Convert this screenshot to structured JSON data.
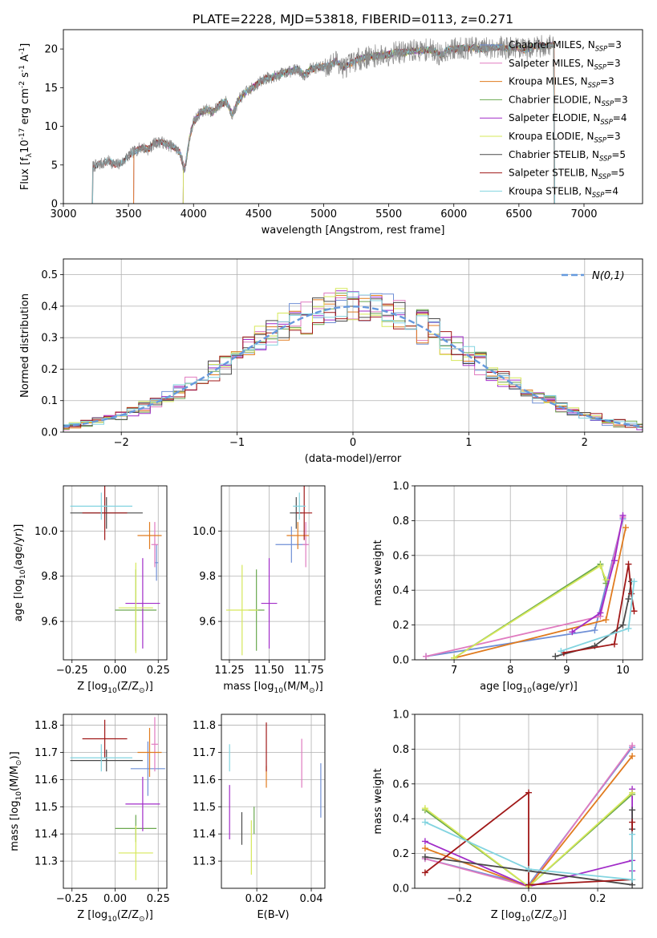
{
  "colors": {
    "chabrier_miles": "#6f8fd6",
    "salpeter_miles": "#e07bc0",
    "kroupa_miles": "#e07b1f",
    "chabrier_elodie": "#6aa84f",
    "salpeter_elodie": "#a12cc8",
    "kroupa_elodie": "#d6e85a",
    "chabrier_stelib": "#4a4a4a",
    "salpeter_stelib": "#a01818",
    "kroupa_stelib": "#83d4e0",
    "normal": "#6699dd"
  },
  "chart_data": [
    {
      "id": "spectrum",
      "type": "line",
      "title": "PLATE=2228, MJD=53818, FIBERID=0113, z=0.271",
      "xlabel": "wavelength [Angstrom, rest frame]",
      "ylabel": "Flux [f$_\\lambda$10$^{-17}$ erg cm$^{-2}$ s$^{-1}$ A$^{-1}$]",
      "xlim": [
        3000,
        7450
      ],
      "ylim": [
        0,
        22.5
      ],
      "xticks": [
        3000,
        3500,
        4000,
        4500,
        5000,
        5500,
        6000,
        6500,
        7000
      ],
      "yticks": [
        0,
        5,
        10,
        15,
        20
      ],
      "grid": false,
      "legend_position": "top-right",
      "spectrum_points": [
        [
          3220,
          0
        ],
        [
          3225,
          4.8
        ],
        [
          3300,
          5.2
        ],
        [
          3350,
          5.5
        ],
        [
          3400,
          5.0
        ],
        [
          3450,
          5.3
        ],
        [
          3500,
          6.2
        ],
        [
          3550,
          6.8
        ],
        [
          3600,
          7.3
        ],
        [
          3650,
          7.0
        ],
        [
          3700,
          7.8
        ],
        [
          3750,
          8.0
        ],
        [
          3800,
          7.6
        ],
        [
          3850,
          7.3
        ],
        [
          3900,
          6.5
        ],
        [
          3930,
          4.2
        ],
        [
          3970,
          8.5
        ],
        [
          4000,
          10.5
        ],
        [
          4050,
          11.8
        ],
        [
          4100,
          12.2
        ],
        [
          4150,
          11.8
        ],
        [
          4200,
          12.8
        ],
        [
          4250,
          13.2
        ],
        [
          4300,
          11.5
        ],
        [
          4350,
          13.5
        ],
        [
          4400,
          14.4
        ],
        [
          4450,
          14.9
        ],
        [
          4500,
          15.6
        ],
        [
          4550,
          16.2
        ],
        [
          4600,
          16.3
        ],
        [
          4650,
          16.6
        ],
        [
          4700,
          17.0
        ],
        [
          4750,
          17.1
        ],
        [
          4800,
          17.4
        ],
        [
          4850,
          16.6
        ],
        [
          4900,
          17.4
        ],
        [
          4950,
          17.6
        ],
        [
          5000,
          17.7
        ],
        [
          5050,
          17.9
        ],
        [
          5100,
          18.5
        ],
        [
          5150,
          17.6
        ],
        [
          5200,
          18.0
        ],
        [
          5250,
          18.6
        ],
        [
          5300,
          18.8
        ],
        [
          5350,
          19.0
        ],
        [
          5400,
          19.1
        ],
        [
          5450,
          19.2
        ],
        [
          5500,
          19.3
        ],
        [
          5550,
          19.6
        ],
        [
          5600,
          19.5
        ],
        [
          5650,
          19.7
        ],
        [
          5700,
          19.8
        ],
        [
          5750,
          19.8
        ],
        [
          5800,
          19.9
        ],
        [
          5850,
          19.8
        ],
        [
          5900,
          19.1
        ],
        [
          5950,
          19.9
        ],
        [
          6000,
          20.0
        ],
        [
          6050,
          20.1
        ],
        [
          6100,
          20.1
        ],
        [
          6150,
          20.2
        ],
        [
          6200,
          20.0
        ],
        [
          6250,
          20.1
        ],
        [
          6300,
          20.2
        ],
        [
          6350,
          20.3
        ],
        [
          6400,
          20.1
        ],
        [
          6450,
          20.2
        ],
        [
          6500,
          20.2
        ],
        [
          6550,
          19.8
        ],
        [
          6600,
          20.3
        ],
        [
          6650,
          20.4
        ],
        [
          6700,
          20.4
        ],
        [
          6750,
          20.5
        ]
      ],
      "series": [
        {
          "name": "Chabrier MILES, N$_{SSP}$=3",
          "color_key": "chabrier_miles",
          "start": 3540
        },
        {
          "name": "Salpeter MILES, N$_{SSP}$=3",
          "color_key": "salpeter_miles",
          "start": 3540
        },
        {
          "name": "Kroupa MILES, N$_{SSP}$=3",
          "color_key": "kroupa_miles",
          "start": 3540
        },
        {
          "name": "Chabrier ELODIE, N$_{SSP}$=3",
          "color_key": "chabrier_elodie",
          "start": 3920
        },
        {
          "name": "Salpeter ELODIE, N$_{SSP}$=4",
          "color_key": "salpeter_elodie",
          "start": 3920
        },
        {
          "name": "Kroupa ELODIE, N$_{SSP}$=3",
          "color_key": "kroupa_elodie",
          "start": 3920
        },
        {
          "name": "Chabrier STELIB, N$_{SSP}$=5",
          "color_key": "chabrier_stelib",
          "start": 3225
        },
        {
          "name": "Salpeter STELIB, N$_{SSP}$=5",
          "color_key": "salpeter_stelib",
          "start": 3225
        },
        {
          "name": "Kroupa STELIB, N$_{SSP}$=4",
          "color_key": "kroupa_stelib",
          "start": 3225
        }
      ]
    },
    {
      "id": "residuals",
      "type": "line",
      "xlabel": "(data-model)/error",
      "ylabel": "Normed distribution",
      "xlim": [
        -2.5,
        2.5
      ],
      "ylim": [
        0,
        0.55
      ],
      "xticks": [
        -2,
        -1,
        0,
        1,
        2
      ],
      "yticks": [
        0.0,
        0.1,
        0.2,
        0.3,
        0.4,
        0.5
      ],
      "grid": true,
      "legend_position": "top-right",
      "normal_label": "$\\mathcal{N}(0,1)$",
      "bin_width": 0.1
    },
    {
      "id": "age_vs_z",
      "type": "scatter",
      "xlabel": "Z [log$_{10}$(Z/Z$_\\odot$)]",
      "ylabel": "age  [log$_{10}$(age/yr)]",
      "xlim": [
        -0.3,
        0.3
      ],
      "ylim": [
        9.43,
        10.2
      ],
      "xticks": [
        -0.25,
        0.0,
        0.25
      ],
      "yticks": [
        9.6,
        9.8,
        10.0
      ],
      "grid": true,
      "points": [
        {
          "color_key": "chabrier_miles",
          "x": 0.24,
          "xerr": 0.01,
          "y": 9.86,
          "yerr": 0.08
        },
        {
          "color_key": "salpeter_miles",
          "x": 0.23,
          "xerr": 0.02,
          "y": 9.94,
          "yerr": 0.1
        },
        {
          "color_key": "kroupa_miles",
          "x": 0.2,
          "xerr": 0.07,
          "y": 9.98,
          "yerr": 0.06
        },
        {
          "color_key": "chabrier_elodie",
          "x": 0.12,
          "xerr": 0.12,
          "y": 9.65,
          "yerr": 0.18
        },
        {
          "color_key": "salpeter_elodie",
          "x": 0.16,
          "xerr": 0.1,
          "y": 9.68,
          "yerr": 0.2
        },
        {
          "color_key": "kroupa_elodie",
          "x": 0.12,
          "xerr": 0.1,
          "y": 9.66,
          "yerr": 0.2
        },
        {
          "color_key": "chabrier_stelib",
          "x": -0.05,
          "xerr": 0.21,
          "y": 10.08,
          "yerr": 0.07
        },
        {
          "color_key": "salpeter_stelib",
          "x": -0.06,
          "xerr": 0.13,
          "y": 10.08,
          "yerr": 0.12
        },
        {
          "color_key": "kroupa_stelib",
          "x": -0.08,
          "xerr": 0.18,
          "y": 10.11,
          "yerr": 0.06
        }
      ]
    },
    {
      "id": "age_vs_mass",
      "type": "scatter",
      "xlabel": "mass [log$_{10}$(M/M$_\\odot$)]",
      "ylabel": "",
      "xlim": [
        11.2,
        11.85
      ],
      "ylim": [
        9.43,
        10.2
      ],
      "xticks": [
        11.25,
        11.5,
        11.75
      ],
      "yticks": [
        9.6,
        9.8,
        10.0
      ],
      "grid": true,
      "points": [
        {
          "color_key": "chabrier_miles",
          "x": 11.64,
          "xerr": 0.1,
          "y": 9.94,
          "yerr": 0.08
        },
        {
          "color_key": "salpeter_miles",
          "x": 11.73,
          "xerr": 0.02,
          "y": 9.94,
          "yerr": 0.1
        },
        {
          "color_key": "kroupa_miles",
          "x": 11.68,
          "xerr": 0.07,
          "y": 9.98,
          "yerr": 0.06
        },
        {
          "color_key": "chabrier_elodie",
          "x": 11.42,
          "xerr": 0.05,
          "y": 9.65,
          "yerr": 0.18
        },
        {
          "color_key": "salpeter_elodie",
          "x": 11.5,
          "xerr": 0.05,
          "y": 9.68,
          "yerr": 0.2
        },
        {
          "color_key": "kroupa_elodie",
          "x": 11.33,
          "xerr": 0.1,
          "y": 9.65,
          "yerr": 0.2
        },
        {
          "color_key": "chabrier_stelib",
          "x": 11.67,
          "xerr": 0.04,
          "y": 10.08,
          "yerr": 0.07
        },
        {
          "color_key": "salpeter_stelib",
          "x": 11.72,
          "xerr": 0.05,
          "y": 10.08,
          "yerr": 0.12
        },
        {
          "color_key": "kroupa_stelib",
          "x": 11.69,
          "xerr": 0.04,
          "y": 10.11,
          "yerr": 0.06
        }
      ]
    },
    {
      "id": "mass_weight_vs_age",
      "type": "line",
      "xlabel": "age  [log$_{10}$(age/yr)]",
      "ylabel": "mass weight",
      "xlim": [
        6.3,
        10.35
      ],
      "ylim": [
        0,
        1.0
      ],
      "xticks": [
        7,
        8,
        9,
        10
      ],
      "yticks": [
        0.0,
        0.2,
        0.4,
        0.6,
        0.8,
        1.0
      ],
      "grid": true,
      "series": [
        {
          "color_key": "chabrier_miles",
          "x": [
            6.5,
            9.5,
            10.0
          ],
          "y": [
            0.02,
            0.17,
            0.81
          ]
        },
        {
          "color_key": "salpeter_miles",
          "x": [
            6.5,
            9.6,
            10.0
          ],
          "y": [
            0.02,
            0.25,
            0.82
          ]
        },
        {
          "color_key": "kroupa_miles",
          "x": [
            7.0,
            9.7,
            10.05
          ],
          "y": [
            0.01,
            0.23,
            0.76
          ]
        },
        {
          "color_key": "chabrier_elodie",
          "x": [
            7.0,
            9.6,
            9.7
          ],
          "y": [
            0.01,
            0.55,
            0.44
          ]
        },
        {
          "color_key": "salpeter_elodie",
          "x": [
            9.1,
            9.6,
            9.85,
            10.0
          ],
          "y": [
            0.16,
            0.27,
            0.57,
            0.83
          ]
        },
        {
          "color_key": "kroupa_elodie",
          "x": [
            7.0,
            9.6,
            9.7
          ],
          "y": [
            0.01,
            0.54,
            0.46
          ]
        },
        {
          "color_key": "chabrier_stelib",
          "x": [
            8.8,
            9.5,
            10.0,
            10.1,
            10.15
          ],
          "y": [
            0.02,
            0.08,
            0.2,
            0.35,
            0.45
          ]
        },
        {
          "color_key": "salpeter_stelib",
          "x": [
            8.95,
            9.85,
            10.1,
            10.15,
            10.2
          ],
          "y": [
            0.04,
            0.09,
            0.55,
            0.38,
            0.28
          ]
        },
        {
          "color_key": "kroupa_stelib",
          "x": [
            8.9,
            10.1,
            10.2
          ],
          "y": [
            0.05,
            0.18,
            0.45
          ]
        }
      ]
    },
    {
      "id": "mass_vs_z",
      "type": "scatter",
      "xlabel": "Z [log$_{10}$(Z/Z$_\\odot$)]",
      "ylabel": "mass [log$_{10}$(M/M$_\\odot$)]",
      "xlim": [
        -0.3,
        0.3
      ],
      "ylim": [
        11.2,
        11.84
      ],
      "xticks": [
        -0.25,
        0.0,
        0.25
      ],
      "yticks": [
        11.3,
        11.4,
        11.5,
        11.6,
        11.7,
        11.8
      ],
      "grid": true,
      "points": [
        {
          "color_key": "chabrier_miles",
          "x": 0.19,
          "xerr": 0.1,
          "y": 11.64,
          "yerr": 0.1
        },
        {
          "color_key": "salpeter_miles",
          "x": 0.23,
          "xerr": 0.02,
          "y": 11.73,
          "yerr": 0.1
        },
        {
          "color_key": "kroupa_miles",
          "x": 0.2,
          "xerr": 0.07,
          "y": 11.7,
          "yerr": 0.09
        },
        {
          "color_key": "chabrier_elodie",
          "x": 0.12,
          "xerr": 0.12,
          "y": 11.42,
          "yerr": 0.05
        },
        {
          "color_key": "salpeter_elodie",
          "x": 0.16,
          "xerr": 0.1,
          "y": 11.51,
          "yerr": 0.1
        },
        {
          "color_key": "kroupa_elodie",
          "x": 0.12,
          "xerr": 0.1,
          "y": 11.33,
          "yerr": 0.1
        },
        {
          "color_key": "chabrier_stelib",
          "x": -0.05,
          "xerr": 0.21,
          "y": 11.67,
          "yerr": 0.04
        },
        {
          "color_key": "salpeter_stelib",
          "x": -0.06,
          "xerr": 0.13,
          "y": 11.75,
          "yerr": 0.07
        },
        {
          "color_key": "kroupa_stelib",
          "x": -0.08,
          "xerr": 0.18,
          "y": 11.68,
          "yerr": 0.05
        }
      ]
    },
    {
      "id": "mass_vs_ebv",
      "type": "scatter",
      "xlabel": "E(B-V)",
      "ylabel": "",
      "xlim": [
        0.007,
        0.045
      ],
      "ylim": [
        11.2,
        11.84
      ],
      "xticks": [
        0.02,
        0.04
      ],
      "yticks": [
        11.3,
        11.4,
        11.5,
        11.6,
        11.7,
        11.8
      ],
      "grid": true,
      "points": [
        {
          "color_key": "chabrier_miles",
          "x": 0.0435,
          "xerr": 0,
          "y": 11.56,
          "yerr": 0.1
        },
        {
          "color_key": "salpeter_miles",
          "x": 0.0365,
          "xerr": 0,
          "y": 11.66,
          "yerr": 0.09
        },
        {
          "color_key": "kroupa_miles",
          "x": 0.0235,
          "xerr": 0,
          "y": 11.61,
          "yerr": 0.04
        },
        {
          "color_key": "chabrier_elodie",
          "x": 0.019,
          "xerr": 0,
          "y": 11.45,
          "yerr": 0.05
        },
        {
          "color_key": "salpeter_elodie",
          "x": 0.01,
          "xerr": 0,
          "y": 11.48,
          "yerr": 0.1
        },
        {
          "color_key": "kroupa_elodie",
          "x": 0.018,
          "xerr": 0,
          "y": 11.35,
          "yerr": 0.1
        },
        {
          "color_key": "chabrier_stelib",
          "x": 0.0145,
          "xerr": 0,
          "y": 11.42,
          "yerr": 0.06
        },
        {
          "color_key": "salpeter_stelib",
          "x": 0.0235,
          "xerr": 0,
          "y": 11.72,
          "yerr": 0.09
        },
        {
          "color_key": "kroupa_stelib",
          "x": 0.01,
          "xerr": 0,
          "y": 11.68,
          "yerr": 0.05
        }
      ]
    },
    {
      "id": "mass_weight_vs_z",
      "type": "line",
      "xlabel": "Z [log$_{10}$(Z/Z$_\\odot$)]",
      "ylabel": "mass weight",
      "xlim": [
        -0.33,
        0.33
      ],
      "ylim": [
        0,
        1.0
      ],
      "xticks": [
        -0.2,
        0.0,
        0.2
      ],
      "yticks": [
        0.0,
        0.2,
        0.4,
        0.6,
        0.8,
        1.0
      ],
      "grid": true,
      "series": [
        {
          "color_key": "chabrier_miles",
          "x": [
            -0.3,
            0.0,
            0.3
          ],
          "y": [
            0.17,
            0.02,
            0.81
          ]
        },
        {
          "color_key": "salpeter_miles",
          "x": [
            -0.3,
            0.0,
            0.3
          ],
          "y": [
            0.17,
            0.01,
            0.82
          ]
        },
        {
          "color_key": "kroupa_miles",
          "x": [
            -0.3,
            0.0,
            0.3
          ],
          "y": [
            0.23,
            0.01,
            0.76
          ]
        },
        {
          "color_key": "chabrier_elodie",
          "x": [
            -0.3,
            0.0,
            0.3
          ],
          "y": [
            0.45,
            0.01,
            0.54
          ]
        },
        {
          "color_key": "salpeter_elodie",
          "x": [
            -0.3,
            0.0,
            0.3,
            0.3,
            0.3
          ],
          "y": [
            0.27,
            0.01,
            0.16,
            0.57,
            0.1
          ]
        },
        {
          "color_key": "kroupa_elodie",
          "x": [
            -0.3,
            0.0,
            0.3
          ],
          "y": [
            0.46,
            0.01,
            0.55
          ]
        },
        {
          "color_key": "chabrier_stelib",
          "x": [
            -0.3,
            0.0,
            0.3,
            0.3,
            0.3
          ],
          "y": [
            0.18,
            0.1,
            0.02,
            0.34,
            0.45
          ]
        },
        {
          "color_key": "salpeter_stelib",
          "x": [
            -0.3,
            0.0,
            0.0,
            0.3,
            0.3
          ],
          "y": [
            0.09,
            0.55,
            0.02,
            0.05,
            0.38
          ]
        },
        {
          "color_key": "kroupa_stelib",
          "x": [
            -0.3,
            0.0,
            0.3,
            0.3
          ],
          "y": [
            0.38,
            0.11,
            0.05,
            0.31
          ]
        }
      ]
    }
  ]
}
